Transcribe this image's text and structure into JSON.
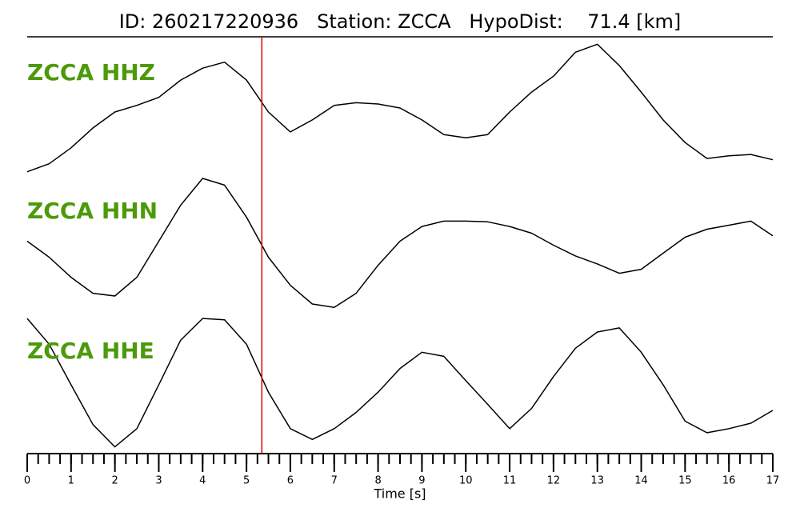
{
  "chart_data": {
    "type": "line",
    "title": "ID: 260217220936   Station: ZCCA   HypoDist:    71.4 [km]",
    "x_label": "Time [s]",
    "x": [
      0,
      0.5,
      1,
      1.5,
      2,
      2.5,
      3,
      3.5,
      4,
      4.5,
      5,
      5.5,
      6,
      6.5,
      7,
      7.5,
      8,
      8.5,
      9,
      9.5,
      10,
      10.5,
      11,
      11.5,
      12,
      12.5,
      13,
      13.5,
      14,
      14.5,
      15,
      15.5,
      16,
      16.5,
      17
    ],
    "xlim": [
      0,
      17
    ],
    "xticks": [
      0,
      1,
      2,
      3,
      4,
      5,
      6,
      7,
      8,
      9,
      10,
      11,
      12,
      13,
      14,
      15,
      16,
      17
    ],
    "minor_per_major": 4,
    "ylim": [
      -1,
      1
    ],
    "label_color": "#4c9a0a",
    "marker_x": 5.35,
    "marker_color": "#e00000",
    "series": [
      {
        "name": "ZCCA HHZ",
        "color": "#000000",
        "values": [
          -0.96,
          -0.84,
          -0.6,
          -0.3,
          -0.06,
          0.04,
          0.16,
          0.42,
          0.6,
          0.69,
          0.42,
          -0.06,
          -0.36,
          -0.18,
          0.04,
          0.08,
          0.06,
          0,
          -0.18,
          -0.4,
          -0.45,
          -0.4,
          -0.06,
          0.24,
          0.48,
          0.84,
          0.96,
          0.64,
          0.24,
          -0.18,
          -0.52,
          -0.76,
          -0.72,
          -0.7,
          -0.78
        ]
      },
      {
        "name": "ZCCA HHN",
        "color": "#000000",
        "values": [
          0,
          -0.24,
          -0.54,
          -0.78,
          -0.82,
          -0.54,
          0,
          0.54,
          0.94,
          0.84,
          0.36,
          -0.24,
          -0.66,
          -0.94,
          -0.99,
          -0.78,
          -0.36,
          0,
          0.22,
          0.3,
          0.3,
          0.29,
          0.22,
          0.12,
          -0.06,
          -0.22,
          -0.34,
          -0.48,
          -0.42,
          -0.18,
          0.06,
          0.18,
          0.24,
          0.3,
          0.08
        ]
      },
      {
        "name": "ZCCA HHE",
        "color": "#000000",
        "values": [
          0.94,
          0.56,
          -0.04,
          -0.63,
          -0.96,
          -0.69,
          -0.04,
          0.62,
          0.94,
          0.92,
          0.56,
          -0.15,
          -0.69,
          -0.85,
          -0.69,
          -0.45,
          -0.15,
          0.2,
          0.44,
          0.38,
          0.02,
          -0.33,
          -0.69,
          -0.39,
          0.08,
          0.5,
          0.74,
          0.8,
          0.44,
          -0.04,
          -0.58,
          -0.75,
          -0.69,
          -0.61,
          -0.42
        ]
      }
    ]
  }
}
